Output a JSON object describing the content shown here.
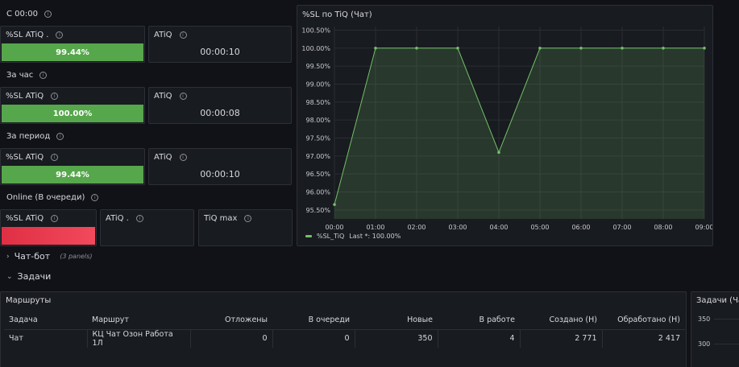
{
  "rows": {
    "c0000": {
      "title": "С 00:00",
      "sl_title": "%SL ATiQ .",
      "sl_value": "99.44%",
      "atiq_title": "ATiQ",
      "atiq_value": "00:00:10"
    },
    "hour": {
      "title": "За час",
      "sl_title": "%SL ATiQ",
      "sl_value": "100.00%",
      "atiq_title": "ATiQ",
      "atiq_value": "00:00:08"
    },
    "period": {
      "title": "За период",
      "sl_title": "%SL ATiQ",
      "sl_value": "99.44%",
      "atiq_title": "ATiQ",
      "atiq_value": "00:00:10"
    },
    "online": {
      "title": "Online (В очереди)",
      "sl_title": "%SL ATiQ",
      "atiq_title": "ATiQ .",
      "tiqmax_title": "TiQ max"
    }
  },
  "chart_panel": {
    "title": "%SL по TiQ (Чат)",
    "legend_label": "%SL_TiQ",
    "legend_stat": "Last *: 100.00%"
  },
  "chart_data": {
    "type": "area",
    "title": "%SL по TiQ (Чат)",
    "x": [
      "00:00",
      "01:00",
      "02:00",
      "03:00",
      "04:00",
      "05:00",
      "06:00",
      "07:00",
      "08:00",
      "09:00"
    ],
    "series": [
      {
        "name": "%SL_TiQ",
        "values": [
          95.65,
          100.0,
          100.0,
          100.0,
          97.1,
          100.0,
          100.0,
          100.0,
          100.0,
          100.0
        ]
      }
    ],
    "yticks": [
      95.5,
      96.0,
      96.5,
      97.0,
      97.5,
      98.0,
      98.5,
      99.0,
      99.5,
      100.0,
      100.5
    ],
    "ylim": [
      95.25,
      100.6
    ],
    "ytick_suffix": "%",
    "grid": true,
    "legend": "bottom-left",
    "color": "#73bf69"
  },
  "sections": {
    "chatbot": {
      "title": "Чат-бот",
      "sub": "(3 panels)"
    },
    "tasks": {
      "title": "Задачи"
    }
  },
  "routes": {
    "title": "Маршруты",
    "columns": [
      "Задача",
      "Маршрут",
      "Отложены",
      "В очереди",
      "Новые",
      "В работе",
      "Создано (Н)",
      "Обработано (Н)"
    ],
    "rows": [
      [
        "Чат",
        "КЦ Чат Озон Работа 1Л",
        "0",
        "0",
        "350",
        "4",
        "2 771",
        "2 417"
      ]
    ]
  },
  "right_panel": {
    "title": "Задачи (Чат",
    "ytick1": "350",
    "ytick2": "300"
  },
  "colors": {
    "green": "#56a64b",
    "red": "#e02f44",
    "line": "#73bf69",
    "bg": "#111217",
    "panel": "#181b1f"
  }
}
